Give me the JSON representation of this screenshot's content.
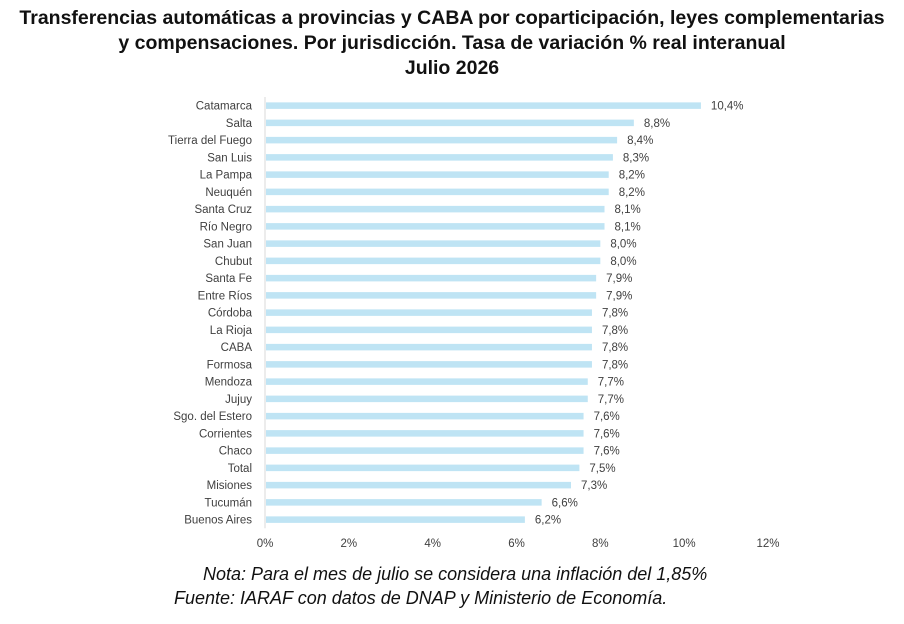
{
  "title_lines": [
    "Transferencias automáticas a provincias y CABA por coparticipación, leyes complementarias",
    "y compensaciones. Por jurisdicción. Tasa de variación % real interanual",
    "Julio 2026"
  ],
  "note": "Nota: Para el mes de julio se considera una inflación del 1,85%",
  "source": "Fuente: IARAF con datos de DNAP y Ministerio de Economía.",
  "chart_data": {
    "type": "bar",
    "orientation": "horizontal",
    "categories": [
      "Catamarca",
      "Salta",
      "Tierra del Fuego",
      "San Luis",
      "La Pampa",
      "Neuquén",
      "Santa Cruz",
      "Río Negro",
      "San Juan",
      "Chubut",
      "Santa Fe",
      "Entre Ríos",
      "Córdoba",
      "La Rioja",
      "CABA",
      "Formosa",
      "Mendoza",
      "Jujuy",
      "Sgo. del Estero",
      "Corrientes",
      "Chaco",
      "Total",
      "Misiones",
      "Tucumán",
      "Buenos Aires"
    ],
    "values": [
      10.4,
      8.8,
      8.4,
      8.3,
      8.2,
      8.2,
      8.1,
      8.1,
      8.0,
      8.0,
      7.9,
      7.9,
      7.8,
      7.8,
      7.8,
      7.8,
      7.7,
      7.7,
      7.6,
      7.6,
      7.6,
      7.5,
      7.3,
      6.6,
      6.2
    ],
    "value_labels": [
      "10,4%",
      "8,8%",
      "8,4%",
      "8,3%",
      "8,2%",
      "8,2%",
      "8,1%",
      "8,1%",
      "8,0%",
      "8,0%",
      "7,9%",
      "7,9%",
      "7,8%",
      "7,8%",
      "7,8%",
      "7,8%",
      "7,7%",
      "7,7%",
      "7,6%",
      "7,6%",
      "7,6%",
      "7,5%",
      "7,3%",
      "6,6%",
      "6,2%"
    ],
    "xlim": [
      0,
      12
    ],
    "xticks": [
      0,
      2,
      4,
      6,
      8,
      10,
      12
    ],
    "xtick_labels": [
      "0%",
      "2%",
      "4%",
      "6%",
      "8%",
      "10%",
      "12%"
    ],
    "grid": false,
    "legend": "none",
    "bar_color": "#bfe4f4",
    "text_color": "#404040"
  }
}
